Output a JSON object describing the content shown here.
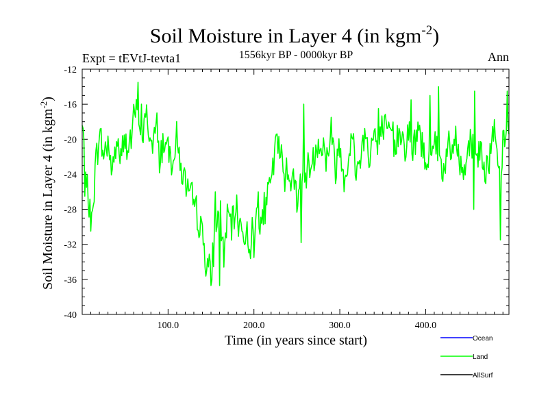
{
  "chart_data": {
    "type": "line",
    "title_main": "Soil Moisture in Layer 4 (in kgm",
    "title_sup": "-2",
    "title_close": ")",
    "subtitle": "1556kyr BP - 0000kyr BP",
    "expt_label": "Expt = tEVtJ-tevta1",
    "season_label": "Ann",
    "xlabel": "Time (in years since start)",
    "ylabel_main": "Soil Moisture in Layer 4 (in kgm",
    "ylabel_sup": "-2",
    "ylabel_close": ")",
    "xlim": [
      0,
      497
    ],
    "ylim": [
      -40,
      -12
    ],
    "x_ticks": [
      100,
      200,
      300,
      400
    ],
    "x_tick_labels": [
      "100.0",
      "200.0",
      "300.0",
      "400.0"
    ],
    "y_ticks": [
      -12,
      -16,
      -20,
      -24,
      -28,
      -32,
      -36,
      -40
    ],
    "y_tick_labels": [
      "-12",
      "-16",
      "-20",
      "-24",
      "-28",
      "-32",
      "-36",
      "-40"
    ],
    "legend": [
      {
        "name": "Ocean",
        "color": "#0000ff"
      },
      {
        "name": "Land",
        "color": "#00ff00"
      },
      {
        "name": "AllSurf",
        "color": "#000000"
      }
    ],
    "series": [
      {
        "name": "Land",
        "color": "#00ff00",
        "anchors": [
          [
            0,
            -18.5
          ],
          [
            5,
            -24
          ],
          [
            10,
            -30
          ],
          [
            15,
            -24
          ],
          [
            20,
            -19
          ],
          [
            25,
            -22
          ],
          [
            30,
            -20
          ],
          [
            35,
            -24
          ],
          [
            40,
            -20
          ],
          [
            45,
            -22
          ],
          [
            50,
            -20
          ],
          [
            55,
            -21
          ],
          [
            60,
            -18
          ],
          [
            65,
            -16
          ],
          [
            70,
            -20
          ],
          [
            75,
            -17
          ],
          [
            80,
            -21
          ],
          [
            85,
            -19
          ],
          [
            90,
            -22
          ],
          [
            95,
            -20
          ],
          [
            100,
            -21
          ],
          [
            105,
            -22
          ],
          [
            110,
            -20
          ],
          [
            115,
            -23
          ],
          [
            120,
            -25
          ],
          [
            125,
            -27
          ],
          [
            130,
            -27
          ],
          [
            135,
            -29
          ],
          [
            140,
            -31
          ],
          [
            145,
            -34
          ],
          [
            150,
            -36
          ],
          [
            155,
            -30
          ],
          [
            160,
            -28
          ],
          [
            165,
            -33
          ],
          [
            170,
            -29
          ],
          [
            175,
            -30
          ],
          [
            180,
            -28
          ],
          [
            185,
            -30
          ],
          [
            190,
            -31
          ],
          [
            195,
            -32
          ],
          [
            200,
            -30
          ],
          [
            205,
            -28
          ],
          [
            210,
            -29
          ],
          [
            215,
            -27
          ],
          [
            220,
            -25
          ],
          [
            225,
            -21
          ],
          [
            230,
            -21
          ],
          [
            235,
            -24
          ],
          [
            240,
            -23
          ],
          [
            245,
            -25
          ],
          [
            250,
            -26
          ],
          [
            255,
            -25
          ],
          [
            260,
            -24
          ],
          [
            265,
            -23
          ],
          [
            270,
            -22
          ],
          [
            275,
            -20
          ],
          [
            280,
            -21
          ],
          [
            285,
            -22
          ],
          [
            290,
            -20
          ],
          [
            295,
            -23
          ],
          [
            300,
            -21
          ],
          [
            305,
            -24
          ],
          [
            310,
            -22
          ],
          [
            315,
            -20
          ],
          [
            320,
            -24
          ],
          [
            325,
            -21
          ],
          [
            330,
            -19
          ],
          [
            335,
            -22
          ],
          [
            340,
            -19
          ],
          [
            345,
            -22
          ],
          [
            350,
            -18
          ],
          [
            355,
            -20
          ],
          [
            360,
            -19
          ],
          [
            365,
            -21
          ],
          [
            370,
            -18
          ],
          [
            375,
            -21
          ],
          [
            380,
            -19
          ],
          [
            385,
            -22
          ],
          [
            390,
            -19
          ],
          [
            395,
            -20
          ],
          [
            400,
            -23
          ],
          [
            405,
            -21
          ],
          [
            410,
            -20
          ],
          [
            415,
            -22
          ],
          [
            420,
            -24
          ],
          [
            425,
            -21
          ],
          [
            430,
            -22
          ],
          [
            435,
            -20
          ],
          [
            440,
            -23
          ],
          [
            445,
            -24
          ],
          [
            450,
            -20
          ],
          [
            455,
            -21
          ],
          [
            460,
            -22
          ],
          [
            465,
            -21
          ],
          [
            470,
            -23
          ],
          [
            475,
            -22
          ],
          [
            480,
            -19
          ],
          [
            485,
            -25
          ],
          [
            490,
            -21
          ],
          [
            495,
            -19
          ],
          [
            497,
            -20
          ]
        ],
        "extremes": [
          [
            3,
            -26.5
          ],
          [
            10,
            -30.5
          ],
          [
            65,
            -13.5
          ],
          [
            69,
            -16
          ],
          [
            87,
            -17
          ],
          [
            150,
            -36.7
          ],
          [
            160,
            -36.7
          ],
          [
            155,
            -26
          ],
          [
            200,
            -33.5
          ],
          [
            205,
            -26
          ],
          [
            225,
            -19.8
          ],
          [
            255,
            -31.8
          ],
          [
            258,
            -16
          ],
          [
            290,
            -17.5
          ],
          [
            345,
            -16.5
          ],
          [
            383,
            -15.5
          ],
          [
            405,
            -15
          ],
          [
            415,
            -14
          ],
          [
            433,
            -20
          ],
          [
            456,
            -28
          ],
          [
            457,
            -14.5
          ],
          [
            487,
            -31.5
          ],
          [
            495,
            -14.5
          ]
        ]
      }
    ]
  }
}
